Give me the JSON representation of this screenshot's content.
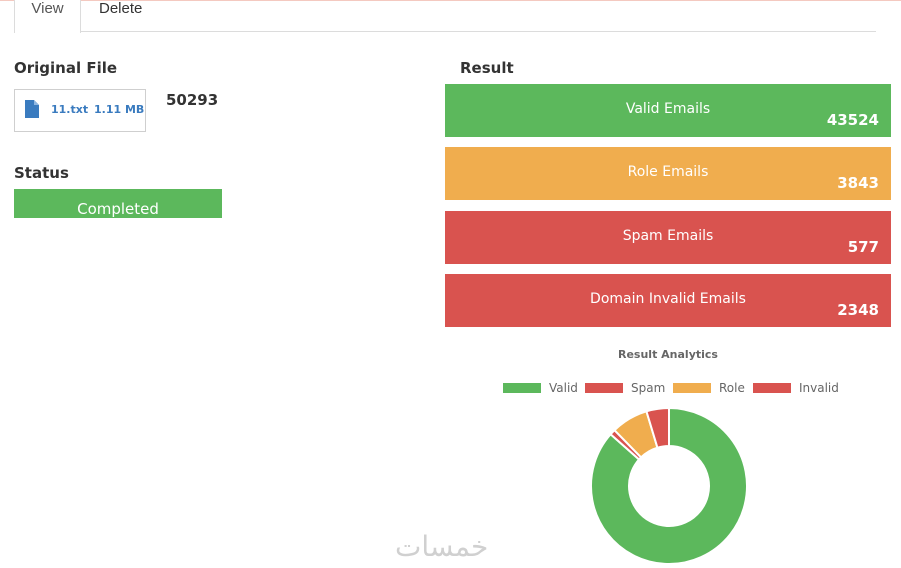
{
  "tabs": [
    {
      "label": "View"
    },
    {
      "label": "Delete"
    }
  ],
  "original_file": {
    "title": "Original File",
    "file_name": "11.txt",
    "file_size": "1.11 MB",
    "total": "50293"
  },
  "status": {
    "title": "Status",
    "value": "Completed"
  },
  "result": {
    "title": "Result",
    "cards": [
      {
        "label": "Valid Emails",
        "count": "43524",
        "color": "#5cb85c"
      },
      {
        "label": "Role Emails",
        "count": "3843",
        "color": "#f0ad4e"
      },
      {
        "label": "Spam Emails",
        "count": "577",
        "color": "#d9534f"
      },
      {
        "label": "Domain Invalid Emails",
        "count": "2348",
        "color": "#d9534f"
      }
    ]
  },
  "chart_data": {
    "type": "pie",
    "title": "Result Analytics",
    "categories": [
      "Valid",
      "Spam",
      "Role",
      "Invalid"
    ],
    "values": [
      43524,
      577,
      3843,
      2348
    ],
    "colors": [
      "#5cb85c",
      "#d9534f",
      "#f0ad4e",
      "#d9534f"
    ],
    "legend": "top"
  },
  "watermark": "خمسات"
}
